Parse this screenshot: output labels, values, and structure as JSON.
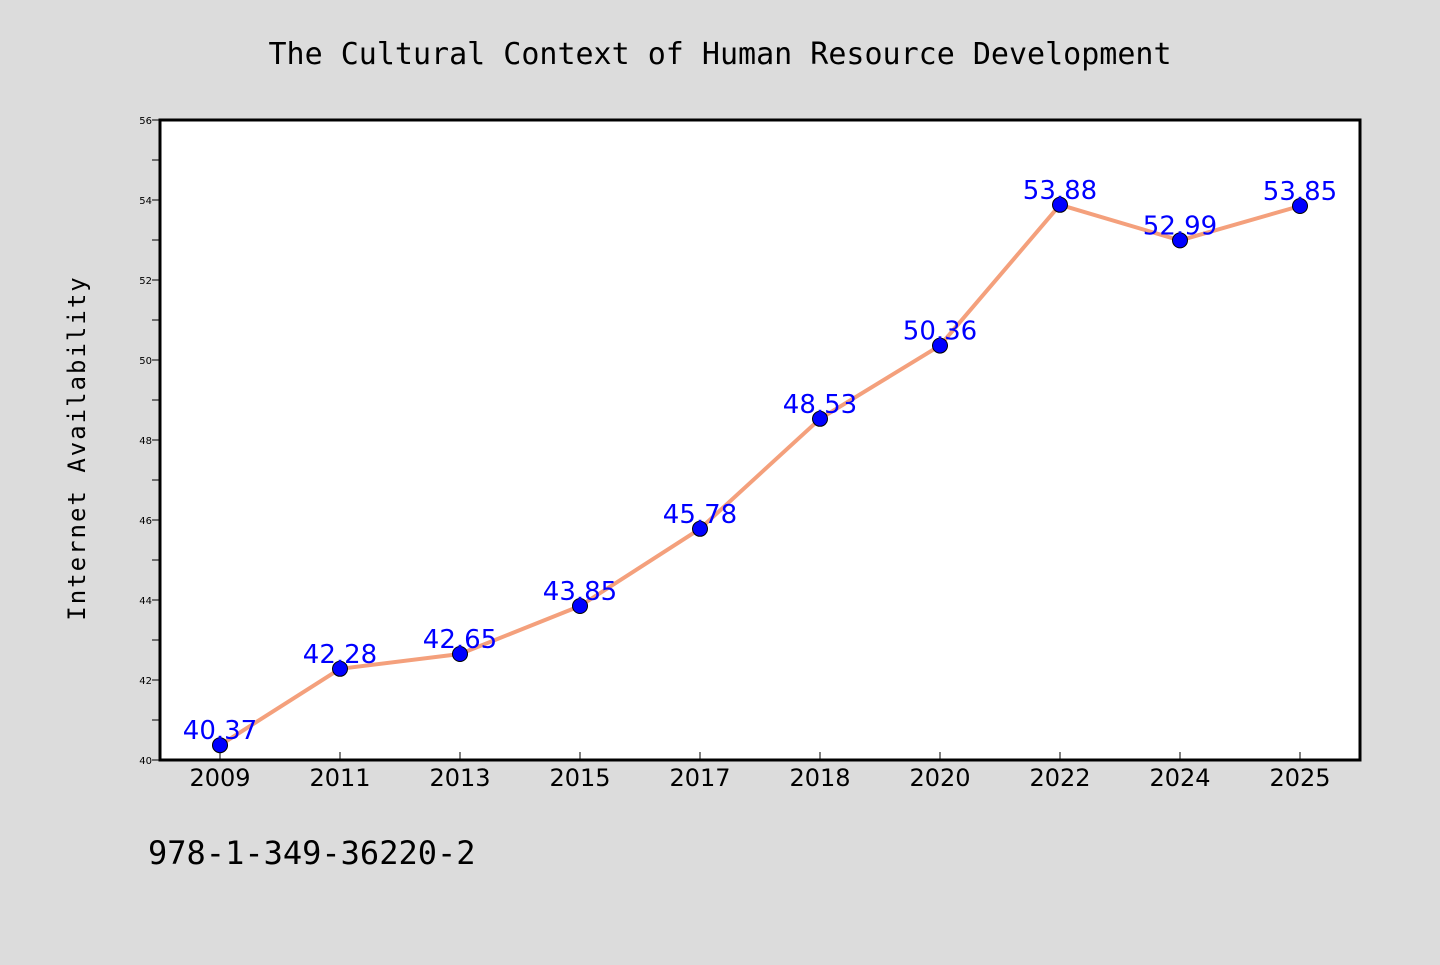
{
  "footer_code": "978-1-349-36220-2",
  "colors": {
    "background": "#dcdcdc",
    "plot_background": "#ffffff",
    "line": "#f4a07c",
    "marker": "#0000ff",
    "data_label": "#0000ff"
  },
  "chart_data": {
    "type": "line",
    "title": "The Cultural Context of Human Resource Development",
    "xlabel": "",
    "ylabel": "Internet Availability",
    "categories": [
      "2009",
      "2011",
      "2013",
      "2015",
      "2017",
      "2018",
      "2020",
      "2022",
      "2024",
      "2025"
    ],
    "series": [
      {
        "values": [
          40.37,
          42.28,
          42.65,
          43.85,
          45.78,
          48.53,
          50.36,
          53.88,
          52.99,
          53.85
        ],
        "labels": [
          "40.37",
          "42.28",
          "42.65",
          "43.85",
          "45.78",
          "48.53",
          "50.36",
          "53.88",
          "52.99",
          "53.85"
        ]
      }
    ],
    "ylim": [
      40,
      56
    ],
    "yticks": [
      40,
      42,
      44,
      46,
      48,
      50,
      52,
      54,
      56
    ],
    "yticks_minor_step": 1,
    "grid": false,
    "legend": "none",
    "markers": "circle"
  }
}
